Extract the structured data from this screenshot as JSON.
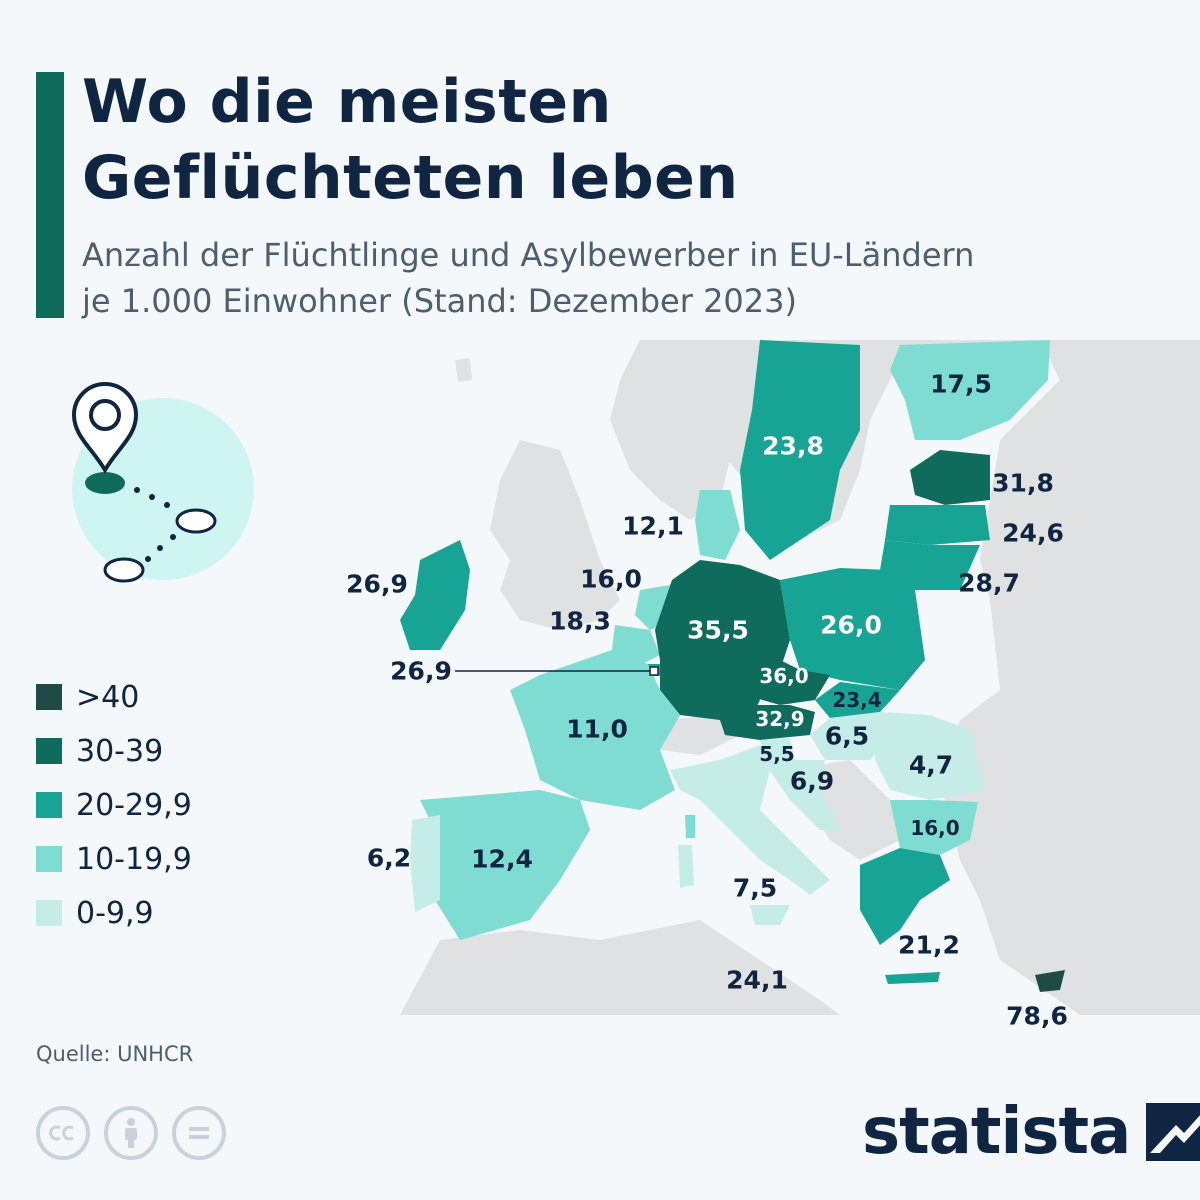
{
  "header": {
    "title_line1": "Wo die meisten",
    "title_line2": "Geflüchteten leben",
    "subtitle_line1": "Anzahl der Flüchtlinge und Asylbewerber in EU-Ländern",
    "subtitle_line2": "je 1.000 Einwohner (Stand: Dezember 2023)"
  },
  "colors": {
    "accent": "#0e6b5a",
    "title": "#0f2541",
    "map_background": "#dfe1e3",
    "sea": "#f5f8fb",
    "class_gt40": "#1f4a45",
    "class_30_39": "#0f6b5c",
    "class_20_29": "#17a495",
    "class_10_19": "#7fdcd2",
    "class_0_9": "#c6ece8",
    "icon_circle": "#cff5f3"
  },
  "legend": [
    {
      "label": ">40",
      "color": "#1f4a45"
    },
    {
      "label": "30-39",
      "color": "#0f6b5c"
    },
    {
      "label": "20-29,9",
      "color": "#17a495"
    },
    {
      "label": "10-19,9",
      "color": "#7fdcd2"
    },
    {
      "label": "0-9,9",
      "color": "#c6ece8"
    }
  ],
  "countries": {
    "finland": {
      "value": "17,5",
      "class": "10-19,9"
    },
    "sweden": {
      "value": "23,8",
      "class": "20-29,9"
    },
    "estonia": {
      "value": "31,8",
      "class": "30-39"
    },
    "latvia": {
      "value": "24,6",
      "class": "20-29,9"
    },
    "lithuania": {
      "value": "28,7",
      "class": "20-29,9"
    },
    "denmark": {
      "value": "12,1",
      "class": "10-19,9"
    },
    "ireland": {
      "value": "26,9",
      "class": "20-29,9"
    },
    "netherlands": {
      "value": "16,0",
      "class": "10-19,9"
    },
    "belgium": {
      "value": "18,3",
      "class": "10-19,9"
    },
    "luxembourg": {
      "value": "26,9",
      "class": "20-29,9"
    },
    "germany": {
      "value": "35,5",
      "class": "30-39"
    },
    "poland": {
      "value": "26,0",
      "class": "20-29,9"
    },
    "czechia": {
      "value": "36,0",
      "class": "30-39"
    },
    "slovakia": {
      "value": "23,4",
      "class": "20-29,9"
    },
    "austria": {
      "value": "32,9",
      "class": "30-39"
    },
    "hungary": {
      "value": "6,5",
      "class": "0-9,9"
    },
    "slovenia": {
      "value": "5,5",
      "class": "0-9,9"
    },
    "croatia": {
      "value": "6,9",
      "class": "0-9,9"
    },
    "romania": {
      "value": "4,7",
      "class": "0-9,9"
    },
    "bulgaria": {
      "value": "16,0",
      "class": "10-19,9"
    },
    "france": {
      "value": "11,0",
      "class": "10-19,9"
    },
    "spain": {
      "value": "12,4",
      "class": "10-19,9"
    },
    "portugal": {
      "value": "6,2",
      "class": "0-9,9"
    },
    "italy": {
      "value": "7,5",
      "class": "0-9,9"
    },
    "malta": {
      "value": "24,1",
      "class": "20-29,9"
    },
    "greece": {
      "value": "21,2",
      "class": "20-29,9"
    },
    "cyprus": {
      "value": "78,6",
      "class": ">40"
    }
  },
  "source": "Quelle: UNHCR",
  "license_icons": [
    "cc-icon",
    "attribution-icon",
    "no-derivatives-icon"
  ],
  "brand": {
    "name": "statista"
  }
}
